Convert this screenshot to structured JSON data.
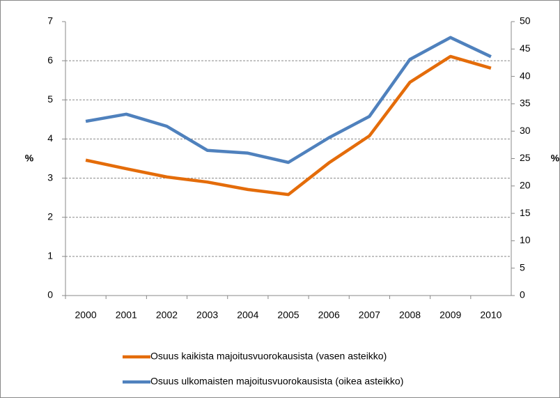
{
  "chart_data": {
    "type": "line",
    "categories": [
      "2000",
      "2001",
      "2002",
      "2003",
      "2004",
      "2005",
      "2006",
      "2007",
      "2008",
      "2009",
      "2010"
    ],
    "series": [
      {
        "name": "Osuus kaikista majoitusvuorokausista (vasen asteikko)",
        "color": "#e46c0a",
        "axis": "y",
        "values": [
          3.46,
          3.24,
          3.03,
          2.9,
          2.71,
          2.58,
          3.39,
          4.08,
          5.45,
          6.11,
          5.81
        ]
      },
      {
        "name": "Osuus ulkomaisten majoitusvuorokausista (oikea asteikko)",
        "color": "#4f81bd",
        "axis": "y2",
        "values": [
          31.8,
          33.1,
          30.9,
          26.5,
          26.0,
          24.3,
          28.8,
          32.7,
          43.1,
          47.1,
          43.6
        ]
      }
    ],
    "ylabel": "%",
    "y2label": "%",
    "ylim": [
      0,
      7
    ],
    "yticks": [
      0,
      1,
      2,
      3,
      4,
      5,
      6,
      7
    ],
    "y2lim": [
      0,
      50
    ],
    "y2ticks": [
      0,
      5,
      10,
      15,
      20,
      25,
      30,
      35,
      40,
      45,
      50
    ],
    "grid": true,
    "legend": "bottom"
  }
}
